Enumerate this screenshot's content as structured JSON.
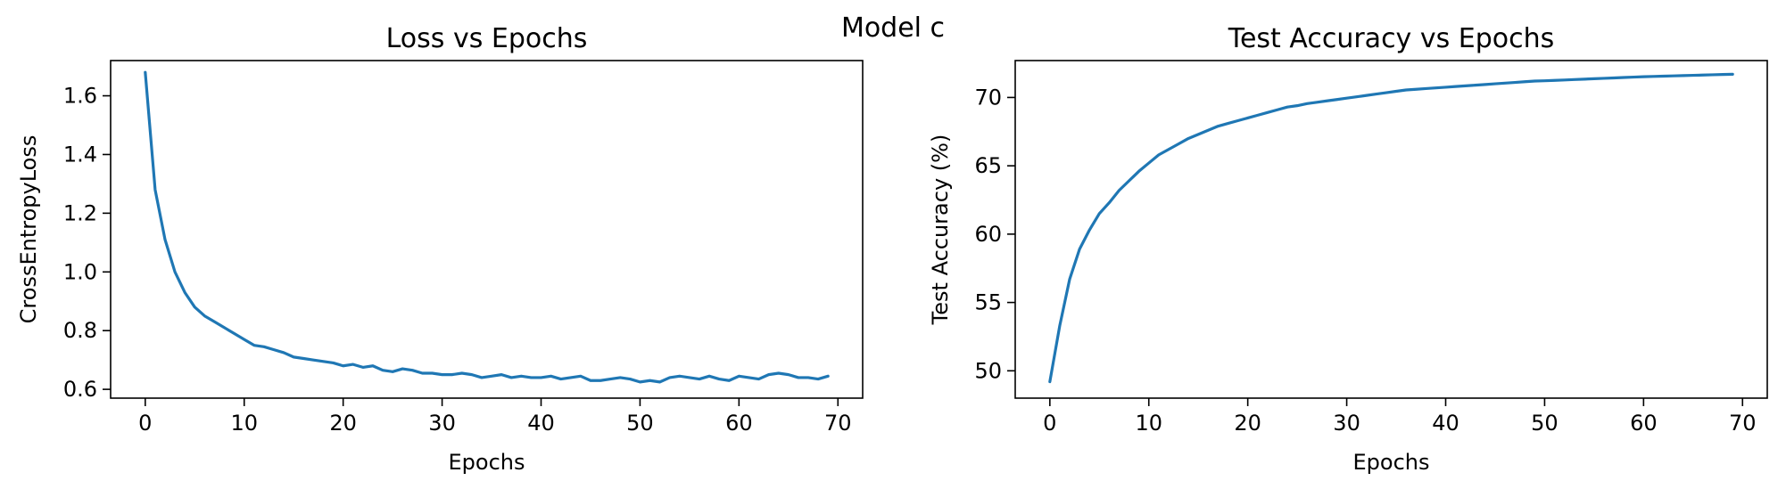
{
  "figure": {
    "suptitle": "Model c"
  },
  "chart_data": [
    {
      "type": "line",
      "title": "Loss vs Epochs",
      "xlabel": "Epochs",
      "ylabel": "CrossEntropyLoss",
      "xlim": [
        -3.5,
        72.5
      ],
      "ylim": [
        0.57,
        1.72
      ],
      "xticks": [
        0,
        10,
        20,
        30,
        40,
        50,
        60,
        70
      ],
      "xtick_labels": [
        "0",
        "10",
        "20",
        "30",
        "40",
        "50",
        "60",
        "70"
      ],
      "yticks": [
        0.6,
        0.8,
        1.0,
        1.2,
        1.4,
        1.6
      ],
      "ytick_labels": [
        "0.6",
        "0.8",
        "1.0",
        "1.2",
        "1.4",
        "1.6"
      ],
      "grid": false,
      "color": "#1f77b4",
      "x": [
        0,
        1,
        2,
        3,
        4,
        5,
        6,
        7,
        8,
        9,
        10,
        11,
        12,
        13,
        14,
        15,
        16,
        17,
        18,
        19,
        20,
        21,
        22,
        23,
        24,
        25,
        26,
        27,
        28,
        29,
        30,
        31,
        32,
        33,
        34,
        35,
        36,
        37,
        38,
        39,
        40,
        41,
        42,
        43,
        44,
        45,
        46,
        47,
        48,
        49,
        50,
        51,
        52,
        53,
        54,
        55,
        56,
        57,
        58,
        59,
        60,
        61,
        62,
        63,
        64,
        65,
        66,
        67,
        68,
        69
      ],
      "y": [
        1.68,
        1.28,
        1.11,
        1.0,
        0.93,
        0.88,
        0.85,
        0.83,
        0.81,
        0.79,
        0.77,
        0.75,
        0.745,
        0.735,
        0.725,
        0.71,
        0.705,
        0.7,
        0.695,
        0.69,
        0.68,
        0.685,
        0.675,
        0.68,
        0.665,
        0.66,
        0.67,
        0.665,
        0.655,
        0.655,
        0.65,
        0.65,
        0.655,
        0.65,
        0.64,
        0.645,
        0.65,
        0.64,
        0.645,
        0.64,
        0.64,
        0.645,
        0.635,
        0.64,
        0.645,
        0.63,
        0.63,
        0.635,
        0.64,
        0.635,
        0.625,
        0.63,
        0.625,
        0.64,
        0.645,
        0.64,
        0.635,
        0.645,
        0.635,
        0.63,
        0.645,
        0.64,
        0.635,
        0.65,
        0.655,
        0.65,
        0.64,
        0.64,
        0.635,
        0.645
      ]
    },
    {
      "type": "line",
      "title": "Test Accuracy vs Epochs",
      "xlabel": "Epochs",
      "ylabel": "Test Accuracy (%)",
      "xlim": [
        -3.5,
        72.5
      ],
      "ylim": [
        48.0,
        72.7
      ],
      "xticks": [
        0,
        10,
        20,
        30,
        40,
        50,
        60,
        70
      ],
      "xtick_labels": [
        "0",
        "10",
        "20",
        "30",
        "40",
        "50",
        "60",
        "70"
      ],
      "yticks": [
        50,
        55,
        60,
        65,
        70
      ],
      "ytick_labels": [
        "50",
        "55",
        "60",
        "65",
        "70"
      ],
      "grid": false,
      "color": "#1f77b4",
      "x": [
        0,
        1,
        2,
        3,
        4,
        5,
        6,
        7,
        8,
        9,
        10,
        11,
        12,
        13,
        14,
        15,
        16,
        17,
        18,
        19,
        20,
        21,
        22,
        23,
        24,
        25,
        26,
        27,
        28,
        29,
        30,
        31,
        32,
        33,
        34,
        35,
        36,
        37,
        38,
        39,
        40,
        41,
        42,
        43,
        44,
        45,
        46,
        47,
        48,
        49,
        50,
        51,
        52,
        53,
        54,
        55,
        56,
        57,
        58,
        59,
        60,
        61,
        62,
        63,
        64,
        65,
        66,
        67,
        68,
        69
      ],
      "y": [
        49.2,
        53.3,
        56.7,
        58.9,
        60.3,
        61.5,
        62.3,
        63.2,
        63.9,
        64.6,
        65.2,
        65.8,
        66.2,
        66.6,
        67.0,
        67.3,
        67.6,
        67.9,
        68.1,
        68.3,
        68.5,
        68.7,
        68.9,
        69.1,
        69.3,
        69.4,
        69.55,
        69.65,
        69.75,
        69.85,
        69.95,
        70.05,
        70.15,
        70.25,
        70.35,
        70.45,
        70.55,
        70.6,
        70.65,
        70.7,
        70.75,
        70.8,
        70.85,
        70.9,
        70.95,
        71.0,
        71.05,
        71.1,
        71.15,
        71.2,
        71.22,
        71.25,
        71.28,
        71.31,
        71.34,
        71.37,
        71.4,
        71.43,
        71.46,
        71.49,
        71.52,
        71.54,
        71.56,
        71.58,
        71.6,
        71.62,
        71.64,
        71.66,
        71.68,
        71.7
      ]
    }
  ]
}
